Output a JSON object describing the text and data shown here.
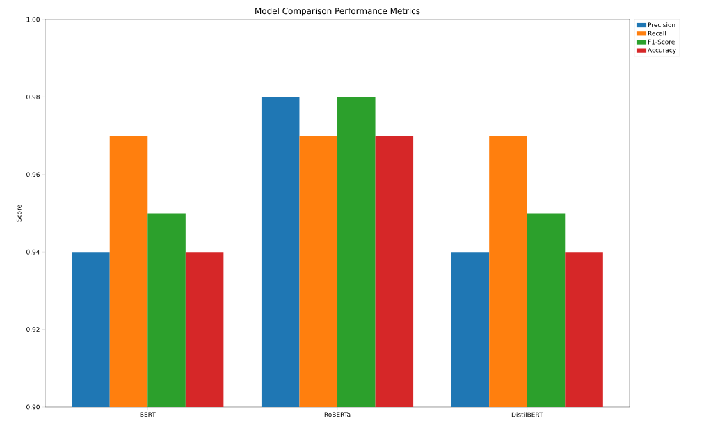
{
  "chart_data": {
    "type": "bar",
    "title": "Model Comparison Performance Metrics",
    "ylabel": "Score",
    "categories": [
      "BERT",
      "RoBERTa",
      "DistilBERT"
    ],
    "series": [
      {
        "name": "Precision",
        "color": "#1f77b4",
        "values": [
          0.94,
          0.98,
          0.94
        ]
      },
      {
        "name": "Recall",
        "color": "#ff7f0e",
        "values": [
          0.97,
          0.97,
          0.97
        ]
      },
      {
        "name": "F1-Score",
        "color": "#2ca02c",
        "values": [
          0.95,
          0.98,
          0.95
        ]
      },
      {
        "name": "Accuracy",
        "color": "#d62728",
        "values": [
          0.94,
          0.97,
          0.94
        ]
      }
    ],
    "ylim": [
      0.9,
      1.0
    ],
    "yticks": [
      {
        "value": 0.9,
        "label": "0.90"
      },
      {
        "value": 0.92,
        "label": "0.92"
      },
      {
        "value": 0.94,
        "label": "0.94"
      },
      {
        "value": 0.96,
        "label": "0.96"
      },
      {
        "value": 0.98,
        "label": "0.98"
      },
      {
        "value": 1.0,
        "label": "1.00"
      }
    ],
    "legend": "top right",
    "grid": false
  }
}
